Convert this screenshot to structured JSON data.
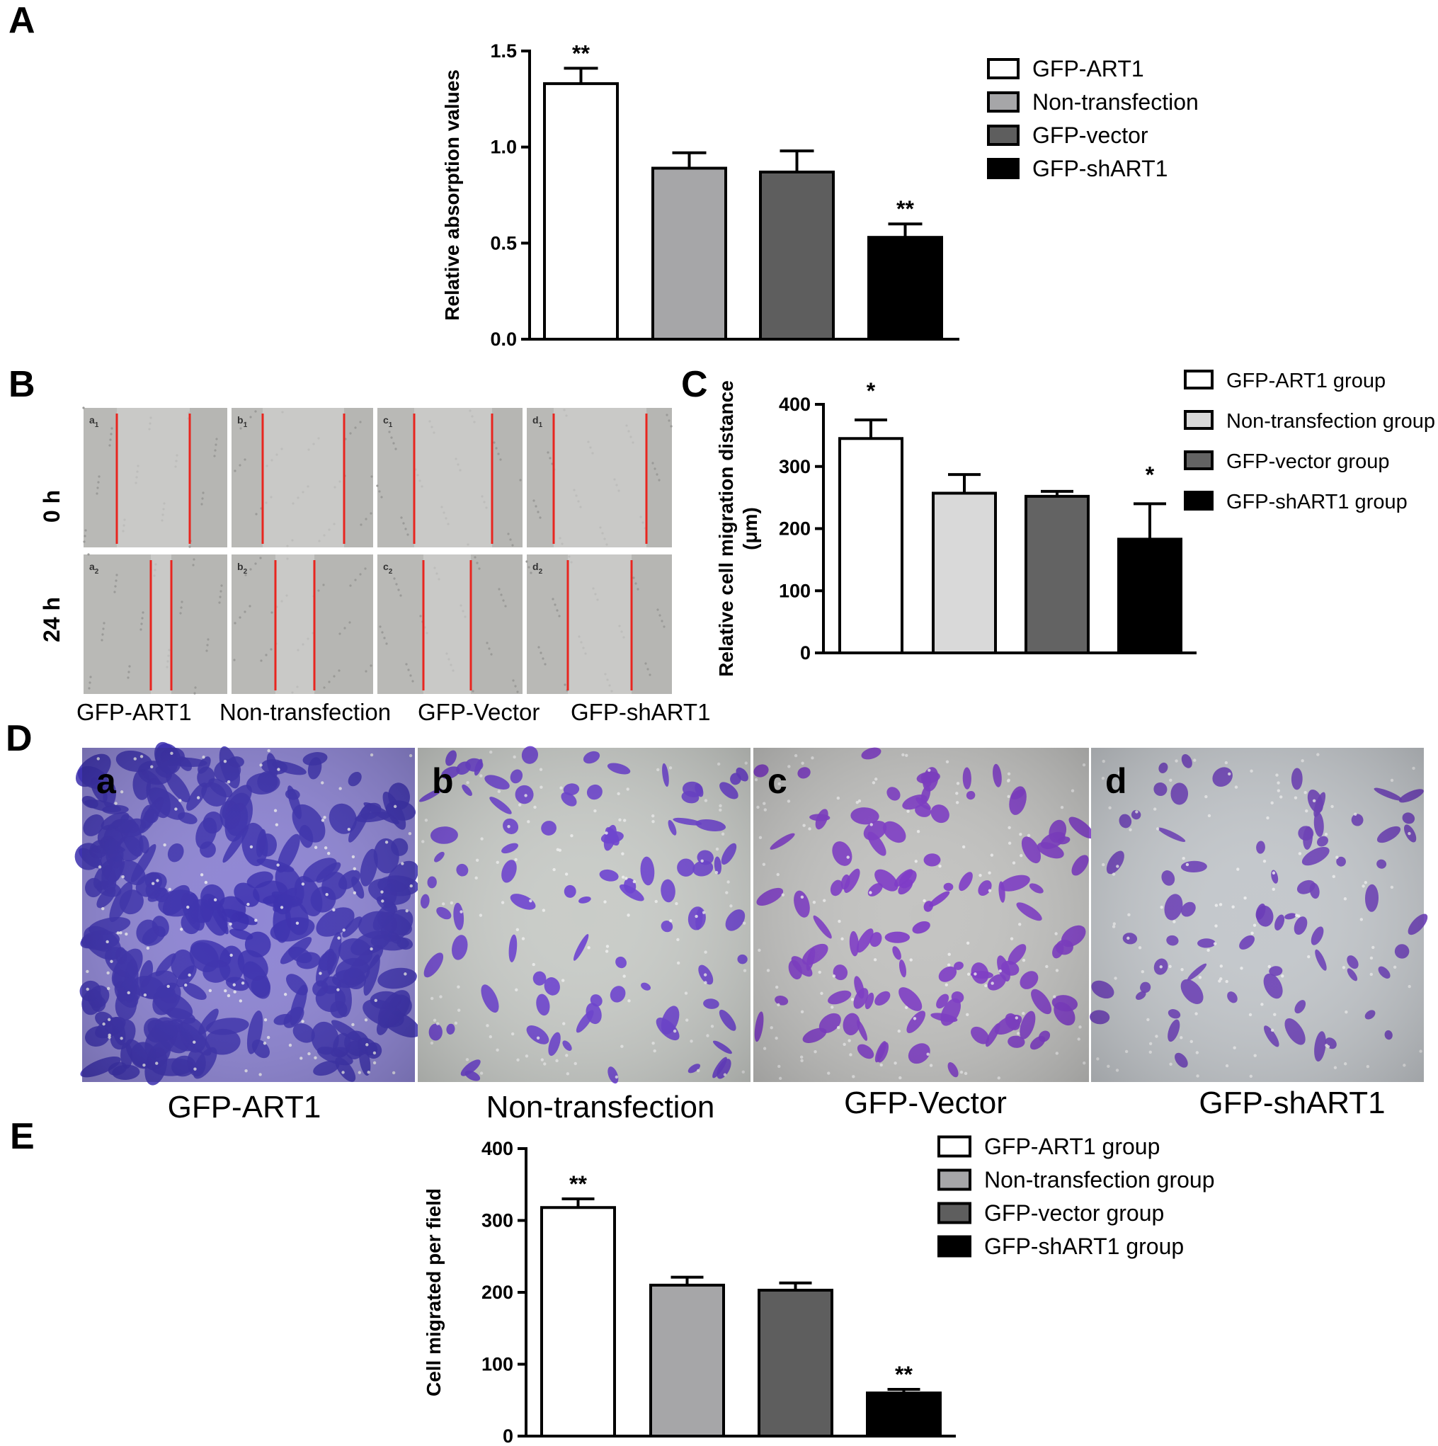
{
  "panels": {
    "A": "A",
    "B": "B",
    "C": "C",
    "D": "D",
    "E": "E"
  },
  "chart_data": [
    {
      "panel": "A",
      "type": "bar",
      "categories": [
        "GFP-ART1",
        "Non-transfection",
        "GFP-vector",
        "GFP-shART1"
      ],
      "values": [
        1.33,
        0.89,
        0.87,
        0.53
      ],
      "errors": [
        0.08,
        0.08,
        0.11,
        0.07
      ],
      "significance": [
        "**",
        "",
        "",
        "**"
      ],
      "colors": [
        "#ffffff",
        "#a6a6a8",
        "#5e5e5e",
        "#000000"
      ],
      "ylabel": "Relative absorption values",
      "ylim": [
        0,
        1.5
      ],
      "yticks": [
        "0.0",
        "0.5",
        "1.0",
        "1.5"
      ],
      "legend": [
        "GFP-ART1",
        "Non-transfection",
        "GFP-vector",
        "GFP-shART1"
      ],
      "legend_position": "right"
    },
    {
      "panel": "C",
      "type": "bar",
      "categories": [
        "GFP-ART1 group",
        "Non-transfection group",
        "GFP-vector group",
        "GFP-shART1 group"
      ],
      "values": [
        345,
        257,
        252,
        183
      ],
      "errors": [
        30,
        30,
        8,
        57
      ],
      "significance": [
        "*",
        "",
        "",
        "*"
      ],
      "colors": [
        "#ffffff",
        "#d9d9d9",
        "#636363",
        "#000000"
      ],
      "ylabel": "Relative cell migration distance (μm)",
      "ylabel_line1": "Relative cell migration distance",
      "ylabel_line2": "(μm)",
      "ylim": [
        0,
        400
      ],
      "yticks": [
        "0",
        "100",
        "200",
        "300",
        "400"
      ],
      "legend": [
        "GFP-ART1 group",
        "Non-transfection group",
        "GFP-vector group",
        "GFP-shART1 group"
      ],
      "legend_position": "right"
    },
    {
      "panel": "E",
      "type": "bar",
      "categories": [
        "GFP-ART1 group",
        "Non-transfection group",
        "GFP-vector group",
        "GFP-shART1 group"
      ],
      "values": [
        318,
        210,
        203,
        60
      ],
      "errors": [
        12,
        11,
        10,
        5
      ],
      "significance": [
        "**",
        "",
        "",
        "**"
      ],
      "colors": [
        "#ffffff",
        "#a6a6a8",
        "#5e5e5e",
        "#000000"
      ],
      "ylabel": "Cell migrated per field",
      "ylim": [
        0,
        400
      ],
      "yticks": [
        "0",
        "100",
        "200",
        "300",
        "400"
      ],
      "legend": [
        "GFP-ART1 group",
        "Non-transfection group",
        "GFP-vector group",
        "GFP-shART1 group"
      ],
      "legend_position": "right"
    }
  ],
  "panel_B": {
    "row_labels": [
      "0 h",
      "24 h"
    ],
    "cell_labels_row1": [
      "a",
      "b",
      "c",
      "d"
    ],
    "cell_labels_row2": [
      "a",
      "b",
      "c",
      "d"
    ],
    "row1_subscript": "1",
    "row2_subscript": "2",
    "captions": [
      "GFP-ART1",
      "Non-transfection",
      "GFP-Vector",
      "GFP-shART1"
    ],
    "wound_line_color": "#e8251f"
  },
  "panel_D": {
    "photo_letters": [
      "a",
      "b",
      "c",
      "d"
    ],
    "captions": [
      "GFP-ART1",
      "Non-transfection",
      "GFP-Vector",
      "GFP-shART1"
    ],
    "stain_colors": [
      "#3b2fae",
      "#6a3fd0",
      "#7c37c6",
      "#6b3db8"
    ]
  }
}
